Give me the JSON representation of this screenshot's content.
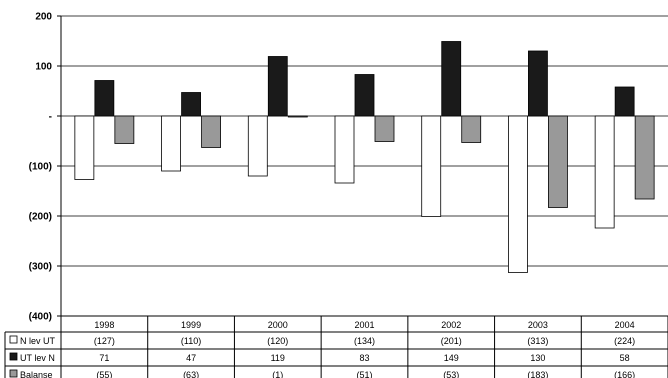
{
  "chart_data": {
    "type": "bar",
    "title": "",
    "xlabel": "",
    "ylabel": "",
    "ylim": [
      -400,
      200
    ],
    "y_ticks": [
      {
        "value": 200,
        "label": "200"
      },
      {
        "value": 100,
        "label": "100"
      },
      {
        "value": 0,
        "label": "-"
      },
      {
        "value": -100,
        "label": "(100)"
      },
      {
        "value": -200,
        "label": "(200)"
      },
      {
        "value": -300,
        "label": "(300)"
      },
      {
        "value": -400,
        "label": "(400)"
      }
    ],
    "grid": true,
    "legend": "data-table-below",
    "categories": [
      "1998",
      "1999",
      "2000",
      "2001",
      "2002",
      "2003",
      "2004"
    ],
    "series": [
      {
        "name": "N lev UT",
        "color": "#ffffff",
        "values": [
          -127,
          -110,
          -120,
          -134,
          -201,
          -313,
          -224
        ],
        "labels": [
          "(127)",
          "(110)",
          "(120)",
          "(134)",
          "(201)",
          "(313)",
          "(224)"
        ]
      },
      {
        "name": "UT lev N",
        "color": "#1a1a1a",
        "values": [
          71,
          47,
          119,
          83,
          149,
          130,
          58
        ],
        "labels": [
          "71",
          "47",
          "119",
          "83",
          "149",
          "130",
          "58"
        ]
      },
      {
        "name": "Balanse",
        "color": "#999999",
        "values": [
          -55,
          -63,
          -1,
          -51,
          -53,
          -183,
          -166
        ],
        "labels": [
          "(55)",
          "(63)",
          "(1)",
          "(51)",
          "(53)",
          "(183)",
          "(166)"
        ]
      }
    ]
  }
}
